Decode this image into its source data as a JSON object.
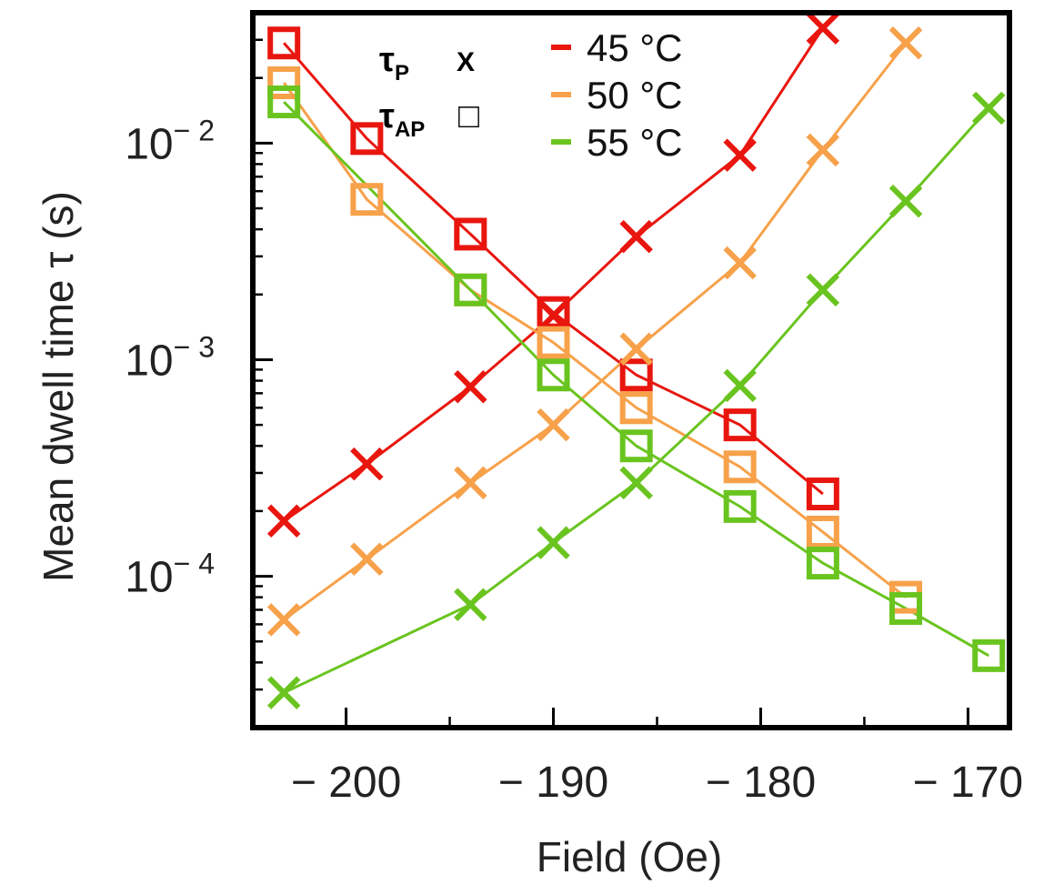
{
  "chart_data": {
    "type": "line",
    "xlabel": "Field (Oe)",
    "ylabel": "Mean dwell time τ (s)",
    "yscale": "log",
    "xlim": [
      -204.5,
      -168
    ],
    "ylim": [
      2e-05,
      0.04
    ],
    "x_ticks": [
      {
        "value": -200,
        "label": "− 200"
      },
      {
        "value": -190,
        "label": "− 190"
      },
      {
        "value": -180,
        "label": "− 180"
      },
      {
        "value": -170,
        "label": "− 170"
      }
    ],
    "y_ticks": [
      {
        "value": 0.0001,
        "base": "10",
        "exp": "− 4"
      },
      {
        "value": 0.001,
        "base": "10",
        "exp": "− 3"
      },
      {
        "value": 0.01,
        "base": "10",
        "exp": "− 2"
      }
    ],
    "grid": false,
    "legend": {
      "position": "top",
      "marker_key": [
        {
          "sym": "τ",
          "sub": "P",
          "marker_label": "X",
          "marker": "x"
        },
        {
          "sym": "τ",
          "sub": "AP",
          "marker_label": "□",
          "marker": "square"
        }
      ],
      "entries": [
        {
          "label": "45 °C",
          "color": "#e8160f"
        },
        {
          "label": "50 °C",
          "color": "#f7a14a"
        },
        {
          "label": "55 °C",
          "color": "#6ac41f"
        }
      ]
    },
    "series": [
      {
        "name": "τP 45 °C",
        "color": "#e8160f",
        "marker": "x",
        "x": [
          -203,
          -199,
          -194,
          -190,
          -186,
          -181,
          -177
        ],
        "y": [
          0.00018,
          0.00033,
          0.00075,
          0.0016,
          0.0037,
          0.0088,
          0.034
        ]
      },
      {
        "name": "τAP 45 °C",
        "color": "#e8160f",
        "marker": "square",
        "x": [
          -203,
          -199,
          -194,
          -190,
          -186,
          -181,
          -177
        ],
        "y": [
          0.029,
          0.0105,
          0.0038,
          0.00165,
          0.00085,
          0.0005,
          0.00024
        ]
      },
      {
        "name": "τP 50 °C",
        "color": "#f7a14a",
        "marker": "x",
        "x": [
          -203,
          -199,
          -194,
          -190,
          -186,
          -181,
          -177,
          -173
        ],
        "y": [
          6.3e-05,
          0.00012,
          0.00027,
          0.0005,
          0.00112,
          0.0028,
          0.0093,
          0.029
        ]
      },
      {
        "name": "τAP 50 °C",
        "color": "#f7a14a",
        "marker": "square",
        "x": [
          -203,
          -199,
          -194,
          -190,
          -186,
          -181,
          -177,
          -173
        ],
        "y": [
          0.019,
          0.0055,
          0.0021,
          0.0012,
          0.0006,
          0.00032,
          0.00016,
          8e-05
        ]
      },
      {
        "name": "τP 55 °C",
        "color": "#6ac41f",
        "marker": "x",
        "x": [
          -203,
          -194,
          -190,
          -186,
          -181,
          -177,
          -173,
          -169
        ],
        "y": [
          2.9e-05,
          7.4e-05,
          0.000143,
          0.00027,
          0.00076,
          0.0021,
          0.0054,
          0.0145
        ]
      },
      {
        "name": "τAP 55 °C",
        "color": "#6ac41f",
        "marker": "square",
        "x": [
          -203,
          -194,
          -190,
          -186,
          -181,
          -177,
          -173,
          -169
        ],
        "y": [
          0.0155,
          0.0021,
          0.00085,
          0.0004,
          0.00021,
          0.000115,
          7.1e-05,
          4.3e-05
        ]
      }
    ]
  }
}
